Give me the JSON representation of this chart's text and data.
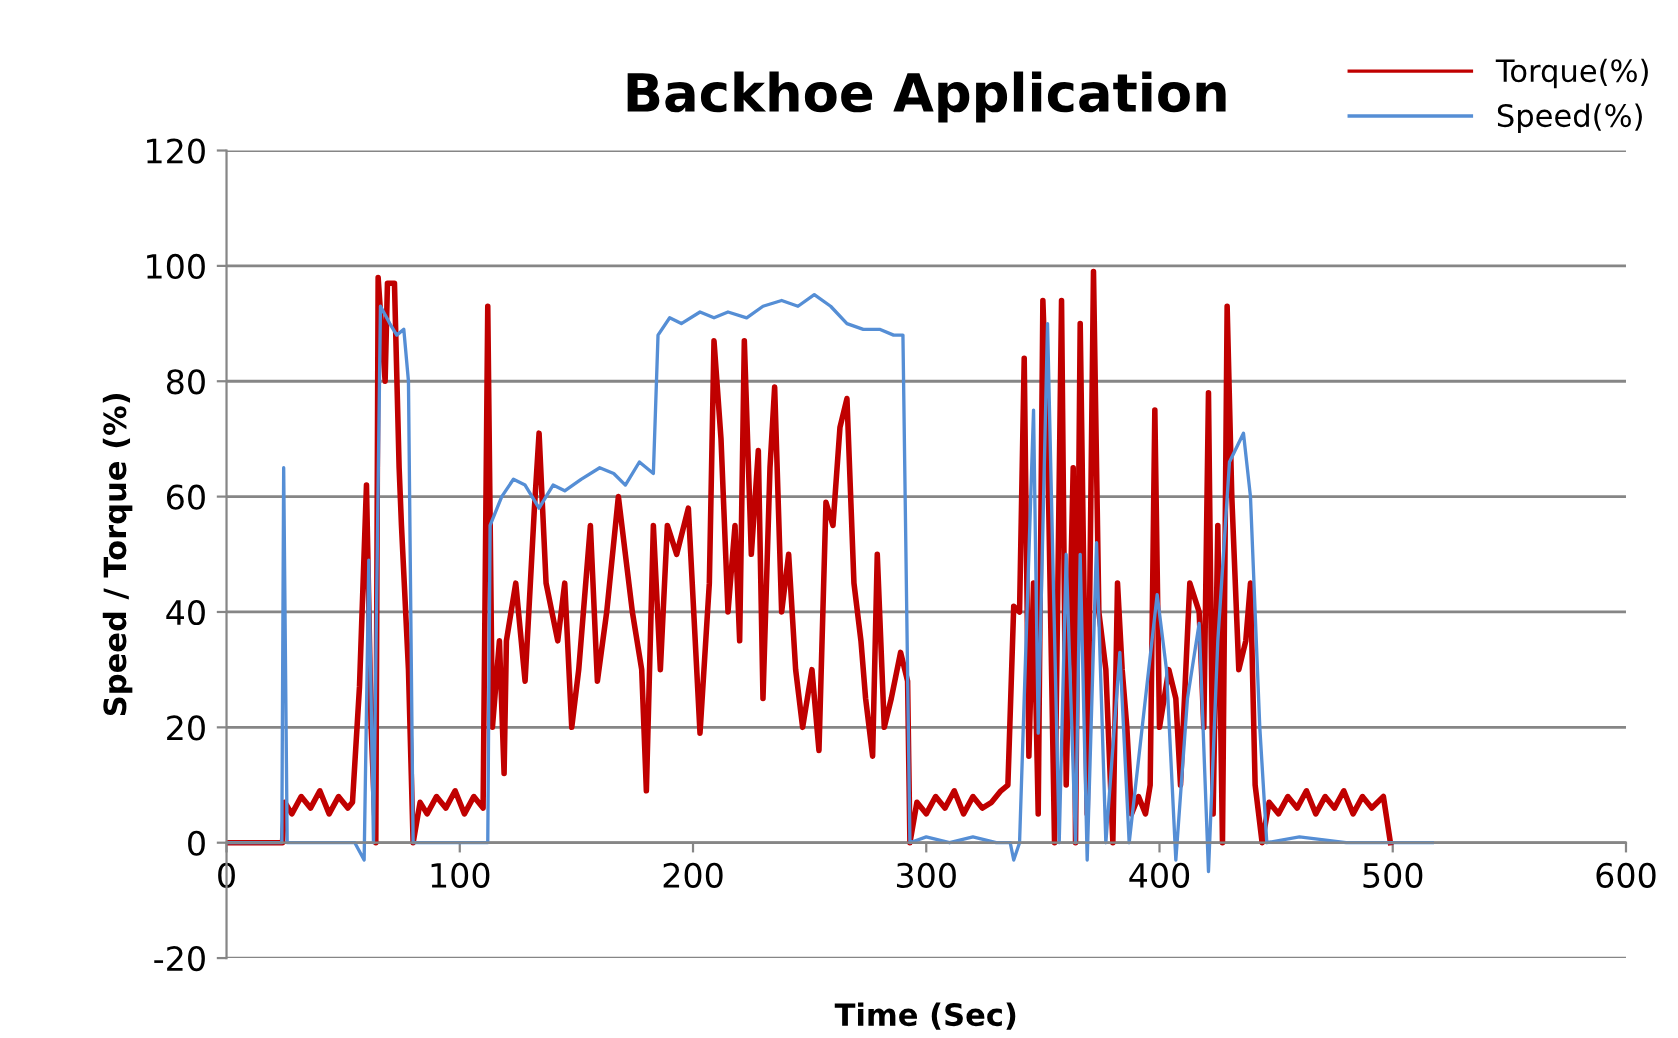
{
  "chart_data": {
    "type": "line",
    "title": "Backhoe Application",
    "xlabel": "Time (Sec)",
    "ylabel": "Speed / Torque (%)",
    "xlim": [
      0,
      600
    ],
    "xticks": [
      0,
      100,
      200,
      300,
      400,
      500,
      600
    ],
    "ylim": [
      -20,
      120
    ],
    "yticks": [
      -20,
      0,
      20,
      40,
      60,
      80,
      100,
      120
    ],
    "grid": "y",
    "legend": "top right",
    "line_style": "solid",
    "marker": "none",
    "series": [
      {
        "name": "Torque(%)",
        "color": "#c00000",
        "x": [
          0,
          24,
          25,
          28,
          32,
          36,
          40,
          44,
          48,
          52,
          54,
          57,
          60,
          62,
          64,
          65,
          68,
          69,
          72,
          74,
          75,
          78,
          80,
          83,
          86,
          90,
          94,
          98,
          102,
          106,
          110,
          112,
          114,
          117,
          119,
          120,
          124,
          128,
          132,
          134,
          137,
          142,
          145,
          148,
          151,
          156,
          159,
          163,
          168,
          174,
          178,
          180,
          183,
          186,
          189,
          193,
          198,
          203,
          207,
          209,
          212,
          215,
          218,
          220,
          222,
          225,
          228,
          230,
          233,
          235,
          238,
          241,
          244,
          247,
          251,
          254,
          257,
          260,
          263,
          266,
          269,
          272,
          274,
          277,
          279,
          282,
          285,
          289,
          292,
          293,
          296,
          300,
          304,
          308,
          312,
          316,
          320,
          324,
          328,
          332,
          335,
          337.5,
          340,
          342,
          344,
          346,
          348,
          350,
          352,
          355,
          358,
          360,
          363,
          364,
          366,
          369,
          371.7,
          374,
          377,
          380,
          382,
          384,
          386,
          388,
          391,
          394,
          396,
          398,
          400,
          404,
          407,
          409,
          413,
          417,
          419,
          421,
          423,
          425,
          427,
          429,
          431,
          434,
          437,
          439,
          441,
          444,
          447,
          451,
          455,
          459,
          463,
          467,
          471,
          475,
          479,
          483,
          487,
          491,
          496,
          499
        ],
        "values": [
          0,
          0,
          7,
          5,
          8,
          6,
          9,
          5,
          8,
          6,
          7,
          27,
          62,
          20,
          0,
          98,
          80,
          97,
          97,
          65,
          55,
          30,
          0,
          7,
          5,
          8,
          6,
          9,
          5,
          8,
          6,
          93,
          20,
          35,
          12,
          35,
          45,
          28,
          58,
          71,
          45,
          35,
          45,
          20,
          30,
          55,
          28,
          40,
          60,
          40,
          30,
          9,
          55,
          30,
          55,
          50,
          58,
          19,
          45,
          87,
          70,
          40,
          55,
          35,
          87,
          50,
          68,
          25,
          65,
          79,
          40,
          50,
          30,
          20,
          30,
          16,
          59,
          55,
          72,
          77,
          45,
          35,
          25,
          15,
          50,
          20,
          25,
          33,
          28,
          0,
          7,
          5,
          8,
          6,
          9,
          5,
          8,
          6,
          7,
          9,
          10,
          41,
          40,
          84,
          15,
          45,
          5,
          94,
          70,
          0,
          94,
          10,
          65,
          0,
          90,
          5,
          99,
          40,
          30,
          0,
          45,
          30,
          20,
          5,
          8,
          5,
          10,
          75,
          20,
          30,
          25,
          10,
          45,
          40,
          20,
          78,
          5,
          55,
          0,
          93,
          60,
          30,
          35,
          45,
          10,
          0,
          7,
          5,
          8,
          6,
          9,
          5,
          8,
          6,
          9,
          5,
          8,
          6,
          8,
          0
        ]
      },
      {
        "name": "Speed(%)",
        "color": "#558ed5",
        "x": [
          0,
          23.7,
          24.5,
          26,
          55,
          59,
          61,
          63,
          66,
          70,
          73,
          76,
          78,
          80,
          112,
          113,
          118,
          123,
          128,
          134,
          140,
          145,
          152,
          160,
          166,
          171,
          177,
          183,
          185,
          190,
          195,
          203,
          209,
          215,
          223,
          230,
          238,
          245,
          252,
          259,
          266,
          273,
          280,
          286,
          290,
          293,
          300,
          310,
          320,
          330,
          336,
          337.5,
          340,
          346,
          348,
          352,
          357,
          360,
          364,
          366,
          369,
          373,
          377,
          383,
          387,
          399,
          403,
          407,
          412,
          417,
          421,
          425,
          430,
          436,
          439,
          443,
          446,
          460,
          480,
          497,
          517
        ],
        "values": [
          0,
          0,
          65,
          0,
          0,
          -3,
          49,
          0,
          93,
          90,
          88,
          89,
          80,
          0,
          0,
          55,
          60,
          63,
          62,
          58,
          62,
          61,
          63,
          65,
          64,
          62,
          66,
          64,
          88,
          91,
          90,
          92,
          91,
          92,
          91,
          93,
          94,
          93,
          95,
          93,
          90,
          89,
          89,
          88,
          88,
          0,
          1,
          0,
          1,
          0,
          0,
          -3,
          0,
          75,
          19,
          90,
          0,
          50,
          0,
          50,
          -3,
          52,
          0,
          33,
          0,
          43,
          30,
          -3,
          25,
          38,
          -5,
          35,
          66,
          71,
          60,
          20,
          0,
          1,
          0,
          0,
          0
        ]
      }
    ]
  }
}
